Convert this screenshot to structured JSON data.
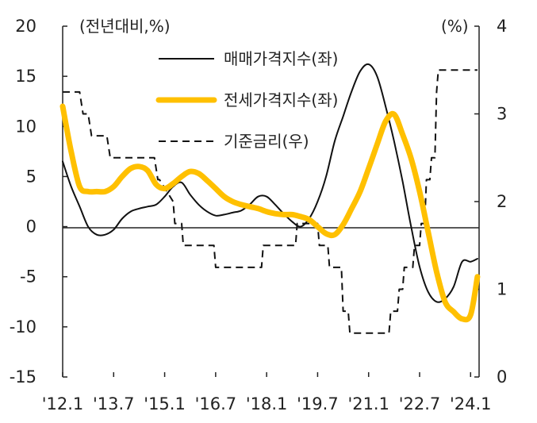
{
  "chart_data": {
    "type": "line",
    "left_axis": {
      "unit_label": "(전년대비,%)",
      "range": [
        -15,
        20
      ],
      "ticks": [
        {
          "value": 20,
          "label": "20"
        },
        {
          "value": 15,
          "label": "15"
        },
        {
          "value": 10,
          "label": "10"
        },
        {
          "value": 5,
          "label": "5"
        },
        {
          "value": 0,
          "label": "0"
        },
        {
          "value": -5,
          "label": "-5"
        },
        {
          "value": -10,
          "label": "-10"
        },
        {
          "value": -15,
          "label": "-15"
        }
      ]
    },
    "right_axis": {
      "unit_label": "(%)",
      "range": [
        0,
        4
      ],
      "ticks": [
        {
          "value": 4,
          "label": "4"
        },
        {
          "value": 3,
          "label": "3"
        },
        {
          "value": 2,
          "label": "2"
        },
        {
          "value": 1,
          "label": "1"
        },
        {
          "value": 0,
          "label": "0"
        }
      ]
    },
    "x_axis": {
      "range": [
        2012.0,
        2024.25
      ],
      "ticks": [
        {
          "value": 2012.0,
          "label": "'12.1"
        },
        {
          "value": 2013.5,
          "label": "'13.7"
        },
        {
          "value": 2015.0,
          "label": "'15.1"
        },
        {
          "value": 2016.5,
          "label": "'16.7"
        },
        {
          "value": 2018.0,
          "label": "'18.1"
        },
        {
          "value": 2019.5,
          "label": "'19.7"
        },
        {
          "value": 2021.0,
          "label": "'21.1"
        },
        {
          "value": 2022.5,
          "label": "'22.7"
        },
        {
          "value": 2024.0,
          "label": "'24.1"
        }
      ]
    },
    "legend": {
      "placement": "top-center",
      "items": [
        {
          "name": "매매가격지수(좌)",
          "style": "solid",
          "color": "#111111"
        },
        {
          "name": "전세가격지수(좌)",
          "style": "thick",
          "color": "#FFC000"
        },
        {
          "name": "기준금리(우)",
          "style": "dashed",
          "color": "#111111"
        }
      ]
    },
    "series": [
      {
        "name": "매매가격지수(좌)",
        "axis": "left",
        "color": "#111111",
        "x": [
          2012.0,
          2012.25,
          2012.5,
          2012.75,
          2013.0,
          2013.25,
          2013.5,
          2013.75,
          2014.0,
          2014.25,
          2014.5,
          2014.75,
          2015.0,
          2015.25,
          2015.5,
          2015.75,
          2016.0,
          2016.25,
          2016.5,
          2016.75,
          2017.0,
          2017.25,
          2017.5,
          2017.75,
          2018.0,
          2018.25,
          2018.5,
          2018.75,
          2019.0,
          2019.25,
          2019.5,
          2019.75,
          2020.0,
          2020.25,
          2020.5,
          2020.75,
          2021.0,
          2021.25,
          2021.5,
          2021.75,
          2022.0,
          2022.25,
          2022.5,
          2022.75,
          2023.0,
          2023.25,
          2023.5,
          2023.75,
          2024.0,
          2024.2
        ],
        "y": [
          6.5,
          4.0,
          2.0,
          0.0,
          -0.8,
          -0.8,
          -0.3,
          0.8,
          1.5,
          1.8,
          2.0,
          2.2,
          3.0,
          4.0,
          4.4,
          3.2,
          2.2,
          1.5,
          1.1,
          1.2,
          1.4,
          1.6,
          2.2,
          3.0,
          3.0,
          2.2,
          1.3,
          0.5,
          0.0,
          0.8,
          2.5,
          5.0,
          8.5,
          11.0,
          13.5,
          15.5,
          16.2,
          15.0,
          12.0,
          8.5,
          4.5,
          0.0,
          -4.0,
          -6.5,
          -7.5,
          -7.2,
          -6.0,
          -3.5,
          -3.5,
          -3.2
        ]
      },
      {
        "name": "전세가격지수(좌)",
        "axis": "left",
        "color": "#FFC000",
        "x": [
          2012.0,
          2012.25,
          2012.5,
          2012.75,
          2013.0,
          2013.25,
          2013.5,
          2013.75,
          2014.0,
          2014.25,
          2014.5,
          2014.75,
          2015.0,
          2015.25,
          2015.5,
          2015.75,
          2016.0,
          2016.25,
          2016.5,
          2016.75,
          2017.0,
          2017.25,
          2017.5,
          2017.75,
          2018.0,
          2018.25,
          2018.5,
          2018.75,
          2019.0,
          2019.25,
          2019.5,
          2019.75,
          2020.0,
          2020.25,
          2020.5,
          2020.75,
          2021.0,
          2021.25,
          2021.5,
          2021.75,
          2022.0,
          2022.25,
          2022.5,
          2022.75,
          2023.0,
          2023.25,
          2023.5,
          2023.75,
          2024.0,
          2024.2
        ],
        "y": [
          12.0,
          7.5,
          4.0,
          3.5,
          3.5,
          3.5,
          4.0,
          5.0,
          5.8,
          6.0,
          5.6,
          4.2,
          3.8,
          4.3,
          5.0,
          5.5,
          5.3,
          4.6,
          3.8,
          3.0,
          2.5,
          2.2,
          2.0,
          1.8,
          1.5,
          1.3,
          1.2,
          1.2,
          1.0,
          0.7,
          0.0,
          -0.7,
          -0.8,
          0.2,
          1.8,
          3.5,
          5.8,
          8.2,
          10.5,
          11.2,
          9.2,
          6.8,
          3.5,
          -0.5,
          -4.5,
          -7.5,
          -8.5,
          -9.2,
          -8.8,
          -5.0
        ]
      },
      {
        "name": "기준금리(우)",
        "axis": "right",
        "color": "#111111",
        "x": [
          2012.0,
          2012.5,
          2012.6,
          2012.75,
          2012.85,
          2013.3,
          2013.4,
          2014.7,
          2014.8,
          2014.85,
          2015.25,
          2015.3,
          2015.5,
          2015.55,
          2016.45,
          2016.5,
          2017.85,
          2017.9,
          2018.85,
          2018.9,
          2019.5,
          2019.55,
          2019.8,
          2019.85,
          2020.2,
          2020.25,
          2020.4,
          2020.45,
          2021.6,
          2021.65,
          2021.85,
          2021.9,
          2022.0,
          2022.05,
          2022.3,
          2022.35,
          2022.5,
          2022.55,
          2022.65,
          2022.7,
          2022.8,
          2022.85,
          2022.95,
          2023.0,
          2023.05,
          2024.2
        ],
        "y": [
          3.25,
          3.25,
          3.0,
          3.0,
          2.75,
          2.75,
          2.5,
          2.5,
          2.25,
          2.25,
          2.0,
          1.75,
          1.75,
          1.5,
          1.5,
          1.25,
          1.25,
          1.5,
          1.5,
          1.75,
          1.75,
          1.5,
          1.5,
          1.25,
          1.25,
          0.75,
          0.75,
          0.5,
          0.5,
          0.75,
          0.75,
          1.0,
          1.0,
          1.25,
          1.25,
          1.5,
          1.5,
          1.75,
          1.75,
          2.25,
          2.25,
          2.5,
          2.5,
          3.25,
          3.5,
          3.5
        ]
      }
    ]
  }
}
